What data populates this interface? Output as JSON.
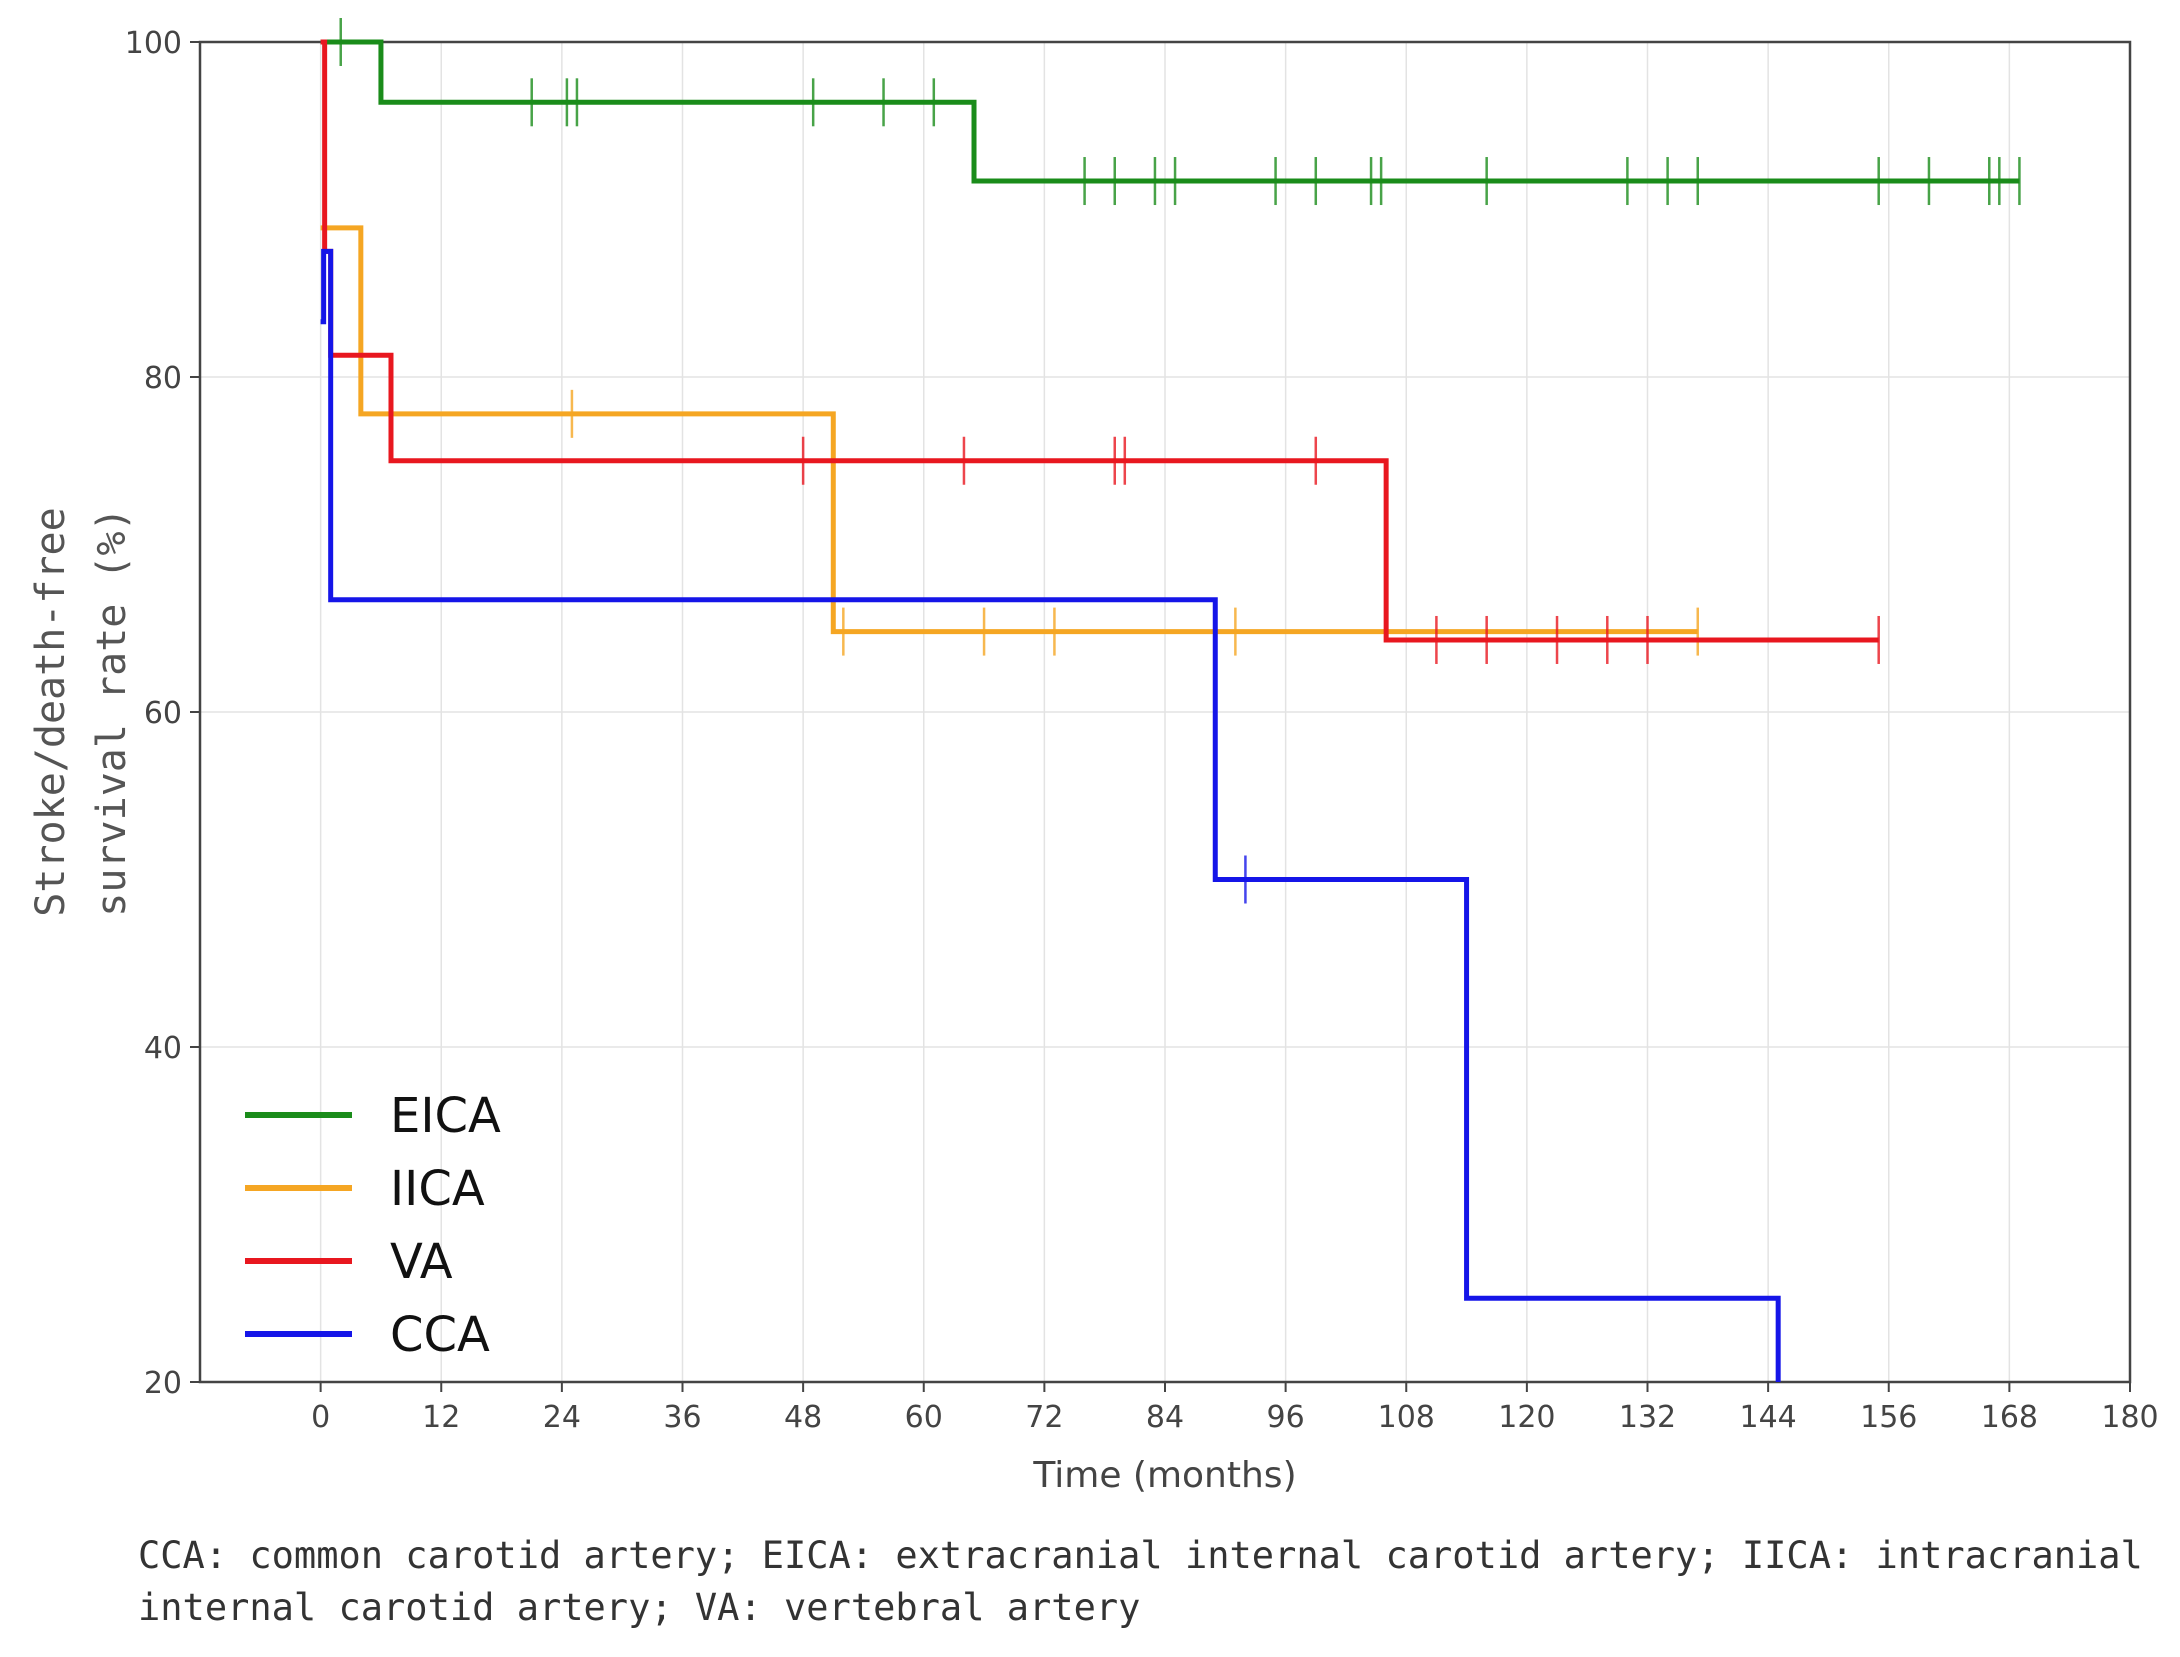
{
  "chart_data": {
    "type": "line",
    "xlabel": "Time (months)",
    "ylabel_lines": [
      "Stroke/death-free",
      "survival rate (%)"
    ],
    "xlim": [
      -12,
      180
    ],
    "ylim": [
      20,
      100
    ],
    "x_ticks": [
      0,
      12,
      24,
      36,
      48,
      60,
      72,
      84,
      96,
      108,
      120,
      132,
      144,
      156,
      168,
      180
    ],
    "y_ticks": [
      20,
      40,
      60,
      80,
      100
    ],
    "grid": true,
    "legend_position": "lower-left",
    "series": [
      {
        "name": "EICA",
        "color": "#1a8c1a",
        "steps": [
          [
            0,
            100
          ],
          [
            6,
            96.4
          ],
          [
            65,
            91.7
          ],
          [
            169,
            91.7
          ]
        ],
        "censors": [
          2,
          21,
          24.5,
          25.5,
          49,
          56,
          61,
          76,
          79,
          83,
          85,
          95,
          99,
          104.5,
          105.5,
          116,
          130,
          134,
          137,
          155,
          160,
          166,
          167,
          169
        ]
      },
      {
        "name": "IICA",
        "color": "#f5a623",
        "steps": [
          [
            0,
            88.9
          ],
          [
            4,
            77.8
          ],
          [
            51,
            64.8
          ],
          [
            137,
            64.8
          ]
        ],
        "censors": [
          25,
          52,
          66,
          73,
          91,
          137
        ]
      },
      {
        "name": "VA",
        "color": "#e8171f",
        "steps": [
          [
            0,
            100
          ],
          [
            0.4,
            87.5
          ],
          [
            1,
            81.3
          ],
          [
            7,
            75
          ],
          [
            106,
            64.3
          ],
          [
            155,
            64.3
          ]
        ],
        "censors": [
          48,
          64,
          79,
          80,
          99,
          111,
          116,
          123,
          128,
          132,
          155
        ]
      },
      {
        "name": "CCA",
        "color": "#1515e8",
        "steps": [
          [
            0,
            83.3
          ],
          [
            0.3,
            87.5
          ],
          [
            1,
            66.7
          ],
          [
            89,
            50
          ],
          [
            114,
            25
          ],
          [
            145,
            20
          ]
        ],
        "censors": [
          92
        ]
      }
    ]
  },
  "caption": "CCA: common carotid artery; EICA: extracranial internal carotid artery; IICA: intracranial internal carotid artery; VA: vertebral artery"
}
